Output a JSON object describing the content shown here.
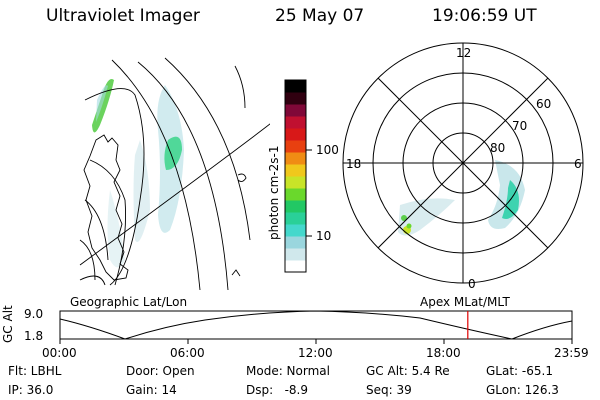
{
  "header": {
    "instrument": "Ultraviolet Imager",
    "date": "25 May 07",
    "time": "19:06:59 UT"
  },
  "colorbar": {
    "label": "photon cm-2s-1",
    "ticks": [
      "100",
      "10"
    ],
    "colors": [
      "#ffffff",
      "#d0e8ec",
      "#9ad6de",
      "#44d8cc",
      "#2ad098",
      "#22c864",
      "#6ad82c",
      "#c8e428",
      "#f0c81c",
      "#f08c14",
      "#e84010",
      "#d81818",
      "#c01030",
      "#800838",
      "#300010",
      "#000000"
    ]
  },
  "polar": {
    "mlt_labels": [
      "12",
      "18",
      "6",
      "0"
    ],
    "lat_labels": [
      "60",
      "70",
      "80"
    ]
  },
  "map_labels": {
    "left": "Geographic Lat/Lon",
    "right": "Apex MLat/MLT"
  },
  "timeline": {
    "ylabel": "GC Alt",
    "yticks": [
      "9.0",
      "1.8"
    ],
    "xticks": [
      "00:00",
      "06:00",
      "12:00",
      "18:00",
      "23:59"
    ],
    "marker_time": "19:06:59",
    "marker_fraction": 0.7965,
    "marker_color": "#e00000"
  },
  "info": {
    "flt": "Flt: LBHL",
    "ip": "IP: 36.0",
    "door": "Door: Open",
    "gain": "Gain: 14",
    "mode": "Mode: Normal",
    "dsp": "Dsp:   -8.9",
    "gcalt": "GC Alt: 5.4 Re",
    "seq": "Seq: 39",
    "glat": "GLat: -65.1",
    "glon": "GLon: 126.3"
  }
}
